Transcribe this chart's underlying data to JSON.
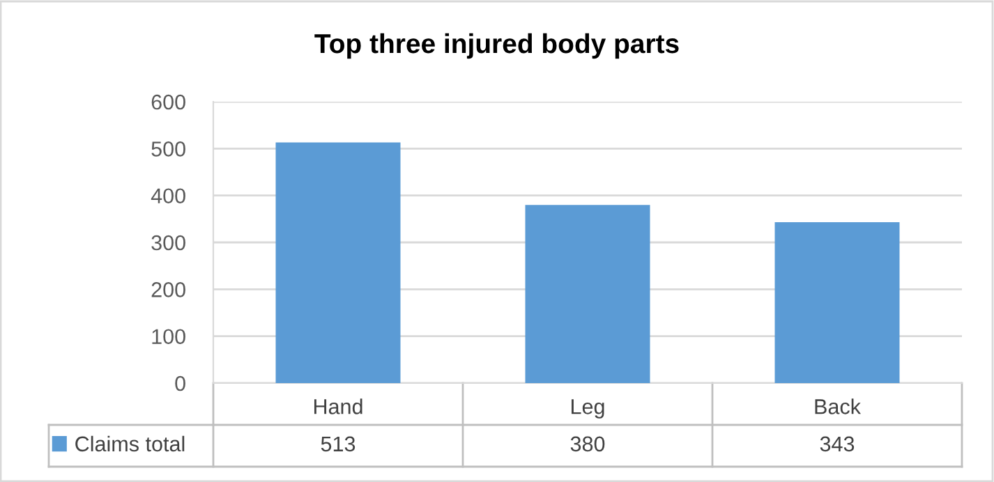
{
  "chart_data": {
    "type": "bar",
    "title": "Top three injured body parts",
    "categories": [
      "Hand",
      "Leg",
      "Back"
    ],
    "series": [
      {
        "name": "Claims total",
        "color": "#5b9bd5",
        "values": [
          513,
          380,
          343
        ]
      }
    ],
    "ylim": [
      0,
      600
    ],
    "yticks": [
      0,
      100,
      200,
      300,
      400,
      500,
      600
    ],
    "grid": "y",
    "legend": "bottom",
    "data_labels": true
  }
}
